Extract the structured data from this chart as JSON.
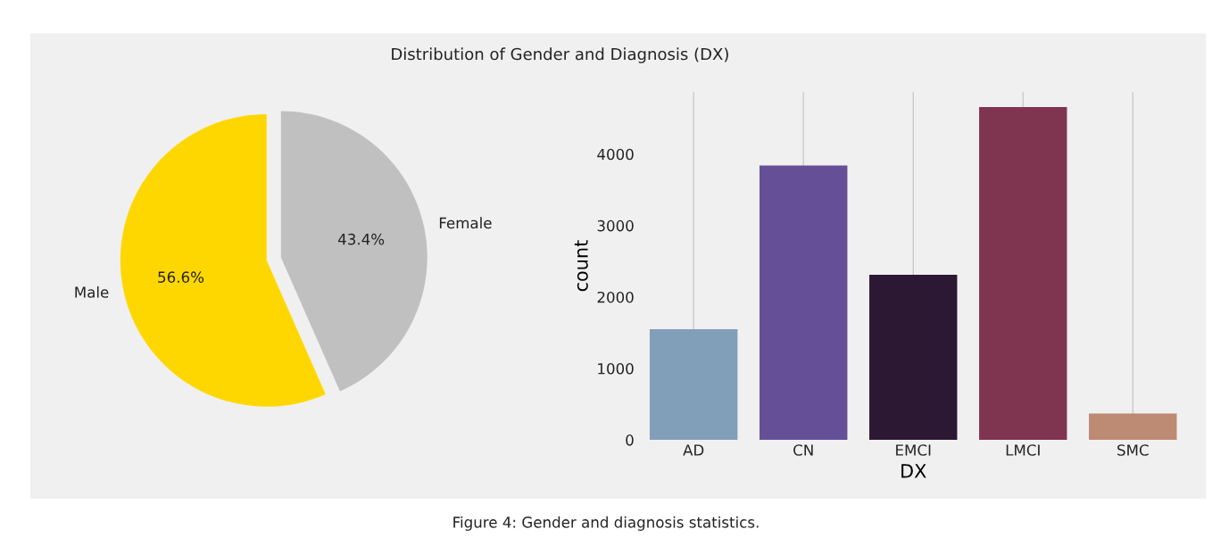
{
  "chart_data": [
    {
      "type": "pie",
      "title": "Distribution of Gender and Diagnosis (DX)",
      "categories": [
        "Male",
        "Female"
      ],
      "values": [
        56.6,
        43.4
      ],
      "colors": [
        "#ffd700",
        "#c0c0c0"
      ],
      "value_labels": [
        "56.6%",
        "43.4%"
      ],
      "annotations": [
        "Figure 4: Gender and diagnosis statistics."
      ]
    },
    {
      "type": "bar",
      "categories": [
        "AD",
        "CN",
        "EMCI",
        "LMCI",
        "SMC"
      ],
      "values": [
        1550,
        3840,
        2310,
        4660,
        370
      ],
      "colors": [
        "#829fba",
        "#654f97",
        "#2c1833",
        "#7f3550",
        "#bd8a73"
      ],
      "xlabel": "DX",
      "ylabel": "count",
      "ylim": [
        0,
        4870
      ],
      "yticks": [
        0,
        1000,
        2000,
        3000,
        4000
      ],
      "grid": "x"
    }
  ]
}
